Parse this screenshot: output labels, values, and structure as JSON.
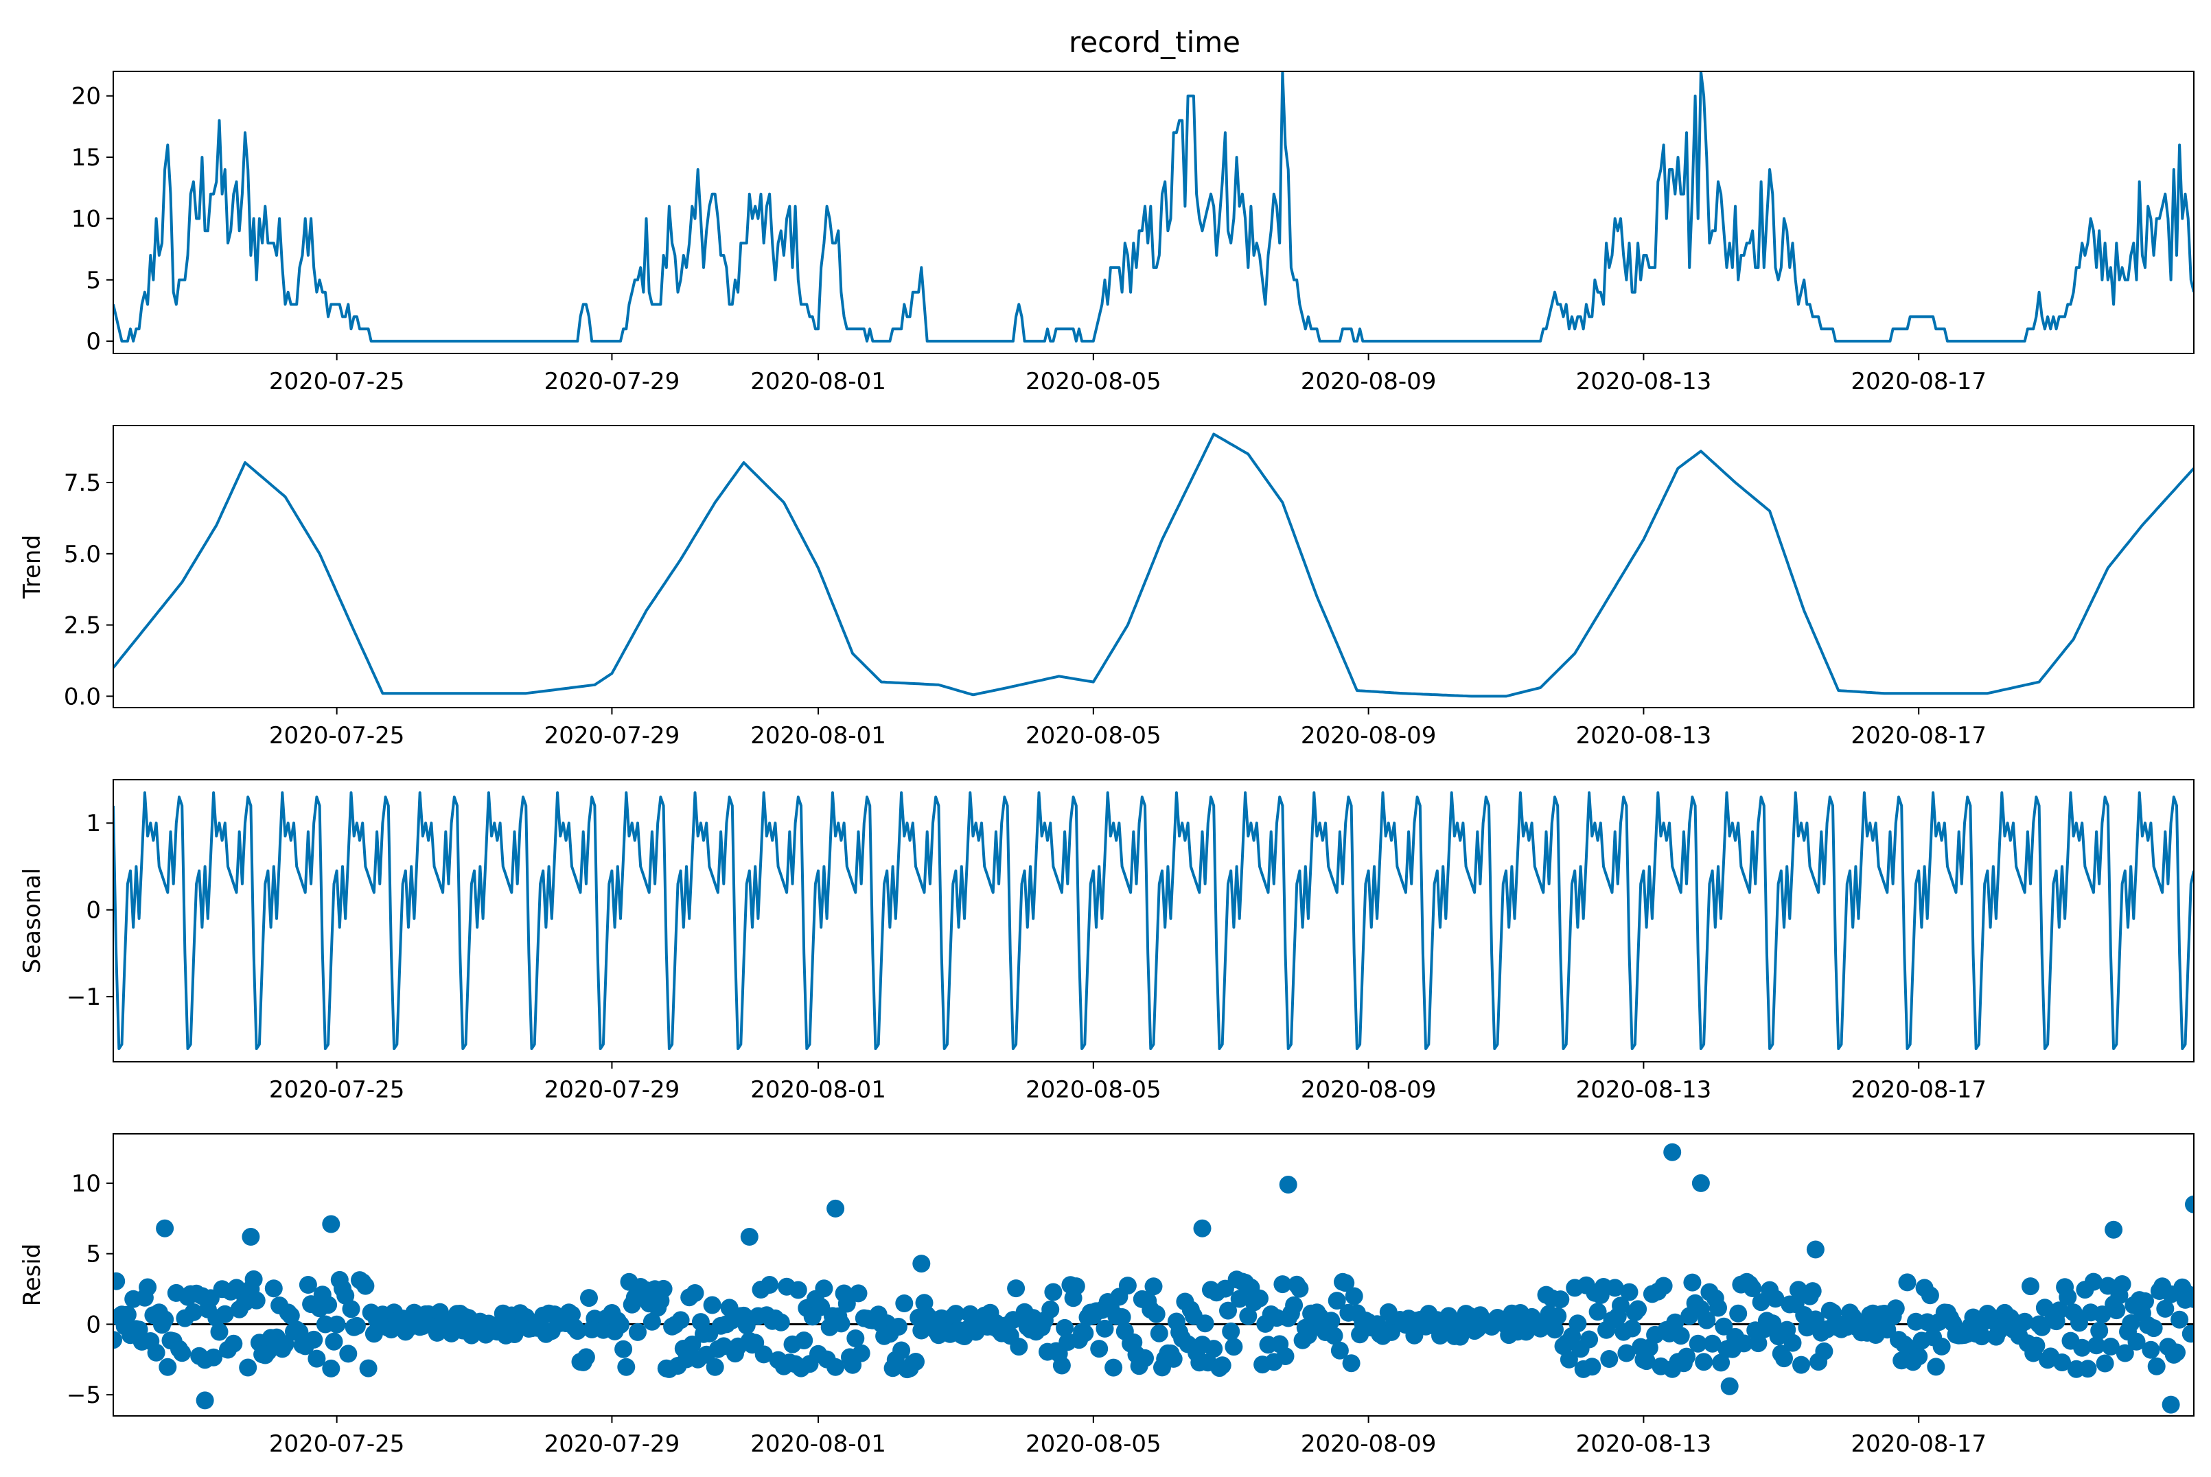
{
  "chart_data": {
    "type": "line",
    "title": "record_time",
    "colors": {
      "series": "#0072b2",
      "zero_line": "#000000",
      "axes": "#000000"
    },
    "x_axis": {
      "type": "date",
      "range": [
        "2020-07-21 18:00",
        "2020-08-21 00:00"
      ],
      "ticks": [
        "2020-07-25",
        "2020-07-29",
        "2020-08-01",
        "2020-08-05",
        "2020-08-09",
        "2020-08-13",
        "2020-08-17"
      ]
    },
    "sampling": "hourly (values read approximately from the plot, key points listed)",
    "panels": [
      {
        "name": "observed",
        "ylabel": "",
        "type": "line",
        "ylim": [
          -1,
          22
        ],
        "yticks": [
          0,
          5,
          10,
          15,
          20
        ],
        "ytick_labels": [
          "0",
          "5",
          "10",
          "15",
          "20"
        ],
        "points": [
          [
            "2020-07-21 18:00",
            3
          ],
          [
            "2020-07-21 21:00",
            0
          ],
          [
            "2020-07-22 03:00",
            1
          ],
          [
            "2020-07-22 06:00",
            4
          ],
          [
            "2020-07-22 09:00",
            9
          ],
          [
            "2020-07-22 13:00",
            12
          ],
          [
            "2020-07-22 16:00",
            3
          ],
          [
            "2020-07-22 20:00",
            8
          ],
          [
            "2020-07-23 00:00",
            11
          ],
          [
            "2020-07-23 04:00",
            14
          ],
          [
            "2020-07-23 08:00",
            12
          ],
          [
            "2020-07-23 12:00",
            9
          ],
          [
            "2020-07-23 16:00",
            13
          ],
          [
            "2020-07-23 20:00",
            8
          ],
          [
            "2020-07-24 00:00",
            10
          ],
          [
            "2020-07-24 04:00",
            7
          ],
          [
            "2020-07-24 09:00",
            3
          ],
          [
            "2020-07-24 13:00",
            11
          ],
          [
            "2020-07-24 17:00",
            4
          ],
          [
            "2020-07-24 22:00",
            3
          ],
          [
            "2020-07-25 14:00",
            0
          ],
          [
            "2020-07-28 12:00",
            0
          ],
          [
            "2020-07-28 14:00",
            4
          ],
          [
            "2020-07-28 17:00",
            0
          ],
          [
            "2020-07-29 03:00",
            0
          ],
          [
            "2020-07-29 08:00",
            4
          ],
          [
            "2020-07-29 12:00",
            7
          ],
          [
            "2020-07-29 16:00",
            2
          ],
          [
            "2020-07-29 20:00",
            9
          ],
          [
            "2020-07-30 02:00",
            5
          ],
          [
            "2020-07-30 07:00",
            12
          ],
          [
            "2020-07-30 12:00",
            10
          ],
          [
            "2020-07-30 17:00",
            3
          ],
          [
            "2020-07-30 22:00",
            8
          ],
          [
            "2020-07-31 04:00",
            14
          ],
          [
            "2020-07-31 09:00",
            5
          ],
          [
            "2020-07-31 14:00",
            11
          ],
          [
            "2020-07-31 19:00",
            3
          ],
          [
            "2020-08-01 00:00",
            2
          ],
          [
            "2020-08-01 04:00",
            12
          ],
          [
            "2020-08-01 10:00",
            1
          ],
          [
            "2020-08-02 00:00",
            0
          ],
          [
            "2020-08-02 12:00",
            5
          ],
          [
            "2020-08-02 14:00",
            0
          ],
          [
            "2020-08-03 20:00",
            0
          ],
          [
            "2020-08-03 22:00",
            4
          ],
          [
            "2020-08-04 00:00",
            0
          ],
          [
            "2020-08-04 15:00",
            1
          ],
          [
            "2020-08-05 00:00",
            0
          ],
          [
            "2020-08-05 06:00",
            5
          ],
          [
            "2020-08-05 12:00",
            6
          ],
          [
            "2020-08-05 18:00",
            8
          ],
          [
            "2020-08-06 00:00",
            9
          ],
          [
            "2020-08-06 06:00",
            15
          ],
          [
            "2020-08-06 12:00",
            16
          ],
          [
            "2020-08-06 18:00",
            11
          ],
          [
            "2020-08-07 00:00",
            13
          ],
          [
            "2020-08-07 06:00",
            9
          ],
          [
            "2020-08-07 12:00",
            5
          ],
          [
            "2020-08-07 18:00",
            15
          ],
          [
            "2020-08-08 00:00",
            2
          ],
          [
            "2020-08-08 08:00",
            0
          ],
          [
            "2020-08-08 16:00",
            1
          ],
          [
            "2020-08-09 00:00",
            0
          ],
          [
            "2020-08-11 12:00",
            0
          ],
          [
            "2020-08-11 18:00",
            3
          ],
          [
            "2020-08-12 00:00",
            1
          ],
          [
            "2020-08-12 08:00",
            4
          ],
          [
            "2020-08-12 16:00",
            8
          ],
          [
            "2020-08-13 00:00",
            5
          ],
          [
            "2020-08-13 12:00",
            21
          ],
          [
            "2020-08-13 16:00",
            10
          ],
          [
            "2020-08-13 20:00",
            19
          ],
          [
            "2020-08-14 04:00",
            8
          ],
          [
            "2020-08-14 12:00",
            9
          ],
          [
            "2020-08-14 20:00",
            10
          ],
          [
            "2020-08-15 04:00",
            6
          ],
          [
            "2020-08-15 12:00",
            2
          ],
          [
            "2020-08-15 20:00",
            0
          ],
          [
            "2020-08-16 12:00",
            0
          ],
          [
            "2020-08-17 00:00",
            2
          ],
          [
            "2020-08-17 12:00",
            0
          ],
          [
            "2020-08-18 12:00",
            0
          ],
          [
            "2020-08-18 18:00",
            3
          ],
          [
            "2020-08-19 00:00",
            1
          ],
          [
            "2020-08-19 08:00",
            6
          ],
          [
            "2020-08-19 16:00",
            8
          ],
          [
            "2020-08-20 00:00",
            4
          ],
          [
            "2020-08-20 08:00",
            12
          ],
          [
            "2020-08-20 16:00",
            9
          ],
          [
            "2020-08-20 20:00",
            17
          ],
          [
            "2020-08-21 00:00",
            6
          ]
        ]
      },
      {
        "name": "trend",
        "ylabel": "Trend",
        "type": "line",
        "ylim": [
          -0.4,
          9.5
        ],
        "yticks": [
          0.0,
          2.5,
          5.0,
          7.5
        ],
        "ytick_labels": [
          "0.0",
          "2.5",
          "5.0",
          "7.5"
        ],
        "points": [
          [
            "2020-07-21 18:00",
            1.0
          ],
          [
            "2020-07-22 06:00",
            2.5
          ],
          [
            "2020-07-22 18:00",
            4.0
          ],
          [
            "2020-07-23 06:00",
            6.0
          ],
          [
            "2020-07-23 16:00",
            8.2
          ],
          [
            "2020-07-24 06:00",
            7.0
          ],
          [
            "2020-07-24 18:00",
            5.0
          ],
          [
            "2020-07-25 06:00",
            2.3
          ],
          [
            "2020-07-25 16:00",
            0.1
          ],
          [
            "2020-07-27 18:00",
            0.1
          ],
          [
            "2020-07-28 18:00",
            0.4
          ],
          [
            "2020-07-29 00:00",
            0.8
          ],
          [
            "2020-07-29 12:00",
            3.0
          ],
          [
            "2020-07-30 00:00",
            4.8
          ],
          [
            "2020-07-30 12:00",
            6.8
          ],
          [
            "2020-07-30 22:00",
            8.2
          ],
          [
            "2020-07-31 12:00",
            6.8
          ],
          [
            "2020-08-01 00:00",
            4.5
          ],
          [
            "2020-08-01 12:00",
            1.5
          ],
          [
            "2020-08-01 22:00",
            0.5
          ],
          [
            "2020-08-02 18:00",
            0.4
          ],
          [
            "2020-08-03 06:00",
            0.05
          ],
          [
            "2020-08-03 18:00",
            0.3
          ],
          [
            "2020-08-04 12:00",
            0.7
          ],
          [
            "2020-08-05 00:00",
            0.5
          ],
          [
            "2020-08-05 12:00",
            2.5
          ],
          [
            "2020-08-06 00:00",
            5.5
          ],
          [
            "2020-08-06 18:00",
            9.2
          ],
          [
            "2020-08-07 06:00",
            8.5
          ],
          [
            "2020-08-07 18:00",
            6.8
          ],
          [
            "2020-08-08 06:00",
            3.5
          ],
          [
            "2020-08-08 20:00",
            0.2
          ],
          [
            "2020-08-09 12:00",
            0.1
          ],
          [
            "2020-08-10 12:00",
            0.0
          ],
          [
            "2020-08-11 00:00",
            0.0
          ],
          [
            "2020-08-11 12:00",
            0.3
          ],
          [
            "2020-08-12 00:00",
            1.5
          ],
          [
            "2020-08-12 12:00",
            3.5
          ],
          [
            "2020-08-13 00:00",
            5.5
          ],
          [
            "2020-08-13 12:00",
            8.0
          ],
          [
            "2020-08-13 20:00",
            8.6
          ],
          [
            "2020-08-14 08:00",
            7.5
          ],
          [
            "2020-08-14 20:00",
            6.5
          ],
          [
            "2020-08-15 08:00",
            3.0
          ],
          [
            "2020-08-15 20:00",
            0.2
          ],
          [
            "2020-08-16 12:00",
            0.1
          ],
          [
            "2020-08-17 12:00",
            0.1
          ],
          [
            "2020-08-18 00:00",
            0.1
          ],
          [
            "2020-08-18 18:00",
            0.5
          ],
          [
            "2020-08-19 06:00",
            2.0
          ],
          [
            "2020-08-19 18:00",
            4.5
          ],
          [
            "2020-08-20 06:00",
            6.0
          ],
          [
            "2020-08-21 00:00",
            8.0
          ]
        ]
      },
      {
        "name": "seasonal",
        "ylabel": "Seasonal",
        "type": "line",
        "ylim": [
          -1.75,
          1.5
        ],
        "yticks": [
          -1,
          0,
          1
        ],
        "ytick_labels": [
          "−1",
          "0",
          "1"
        ],
        "period_hours": 24,
        "daily_pattern": [
          1.2,
          -0.5,
          -1.6,
          -1.55,
          -0.6,
          0.3,
          0.45,
          -0.2,
          0.5,
          -0.1,
          0.6,
          1.35,
          0.85,
          1.0,
          0.8,
          1.0,
          0.5,
          0.4,
          0.3,
          0.2,
          0.9,
          0.3,
          1.0,
          1.3
        ]
      },
      {
        "name": "resid",
        "ylabel": "Resid",
        "type": "scatter",
        "ylim": [
          -6.5,
          13.5
        ],
        "yticks": [
          -5,
          0,
          5,
          10
        ],
        "ytick_labels": [
          "−5",
          "0",
          "5",
          "10"
        ],
        "highlight_points": [
          [
            "2020-07-22 12:00",
            6.8
          ],
          [
            "2020-07-23 02:00",
            -5.4
          ],
          [
            "2020-07-23 18:00",
            6.2
          ],
          [
            "2020-07-24 22:00",
            7.1
          ],
          [
            "2020-07-31 00:00",
            6.2
          ],
          [
            "2020-08-01 06:00",
            8.2
          ],
          [
            "2020-08-02 12:00",
            4.3
          ],
          [
            "2020-08-06 14:00",
            6.8
          ],
          [
            "2020-08-07 20:00",
            9.9
          ],
          [
            "2020-08-13 10:00",
            12.2
          ],
          [
            "2020-08-13 20:00",
            10.0
          ],
          [
            "2020-08-14 06:00",
            -4.4
          ],
          [
            "2020-08-15 12:00",
            5.3
          ],
          [
            "2020-08-19 20:00",
            6.7
          ],
          [
            "2020-08-20 16:00",
            -5.7
          ],
          [
            "2020-08-21 00:00",
            8.5
          ]
        ]
      }
    ]
  }
}
